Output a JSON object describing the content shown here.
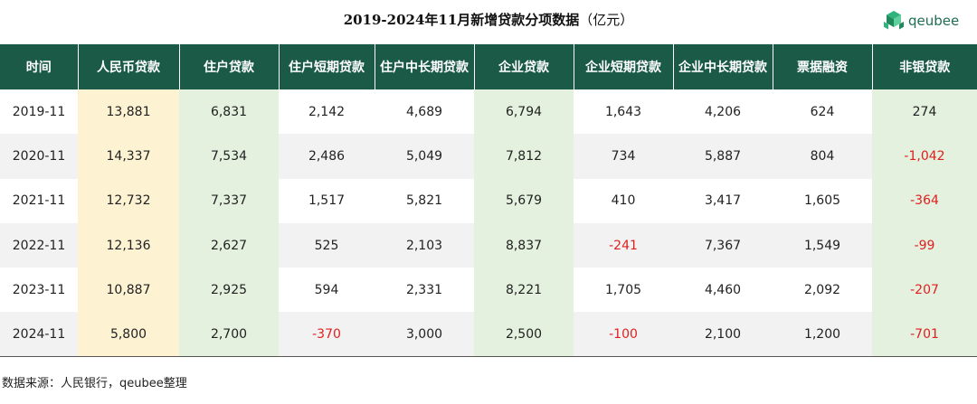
{
  "title": "2019-2024年11月新增贷款分项数据",
  "title_unit": "（亿元）",
  "logo_text": "qeubee",
  "logo_color": "#1f6e52",
  "header_bg": "#1a5a47",
  "highlight_yellow": "#fdf3d3",
  "highlight_green": "#e3f1de",
  "negative_color": "#e02020",
  "columns": [
    "时间",
    "人民币贷款",
    "住户贷款",
    "住户短期贷款",
    "住户中长期贷款",
    "企业贷款",
    "企业短期贷款",
    "企业中长期贷款",
    "票据融资",
    "非银贷款"
  ],
  "rows": [
    [
      "2019-11",
      "13,881",
      "6,831",
      "2,142",
      "4,689",
      "6,794",
      "1,643",
      "4,206",
      "624",
      "274"
    ],
    [
      "2020-11",
      "14,337",
      "7,534",
      "2,486",
      "5,049",
      "7,812",
      "734",
      "5,887",
      "804",
      "-1,042"
    ],
    [
      "2021-11",
      "12,732",
      "7,337",
      "1,517",
      "5,821",
      "5,679",
      "410",
      "3,417",
      "1,605",
      "-364"
    ],
    [
      "2022-11",
      "12,136",
      "2,627",
      "525",
      "2,103",
      "8,837",
      "-241",
      "7,367",
      "1,549",
      "-99"
    ],
    [
      "2023-11",
      "10,887",
      "2,925",
      "594",
      "2,331",
      "8,221",
      "1,705",
      "4,460",
      "2,092",
      "-207"
    ],
    [
      "2024-11",
      "5,800",
      "2,700",
      "-370",
      "3,000",
      "2,500",
      "-100",
      "2,100",
      "1,200",
      "-701"
    ]
  ],
  "source": "数据来源：人民银行，qeubee整理"
}
